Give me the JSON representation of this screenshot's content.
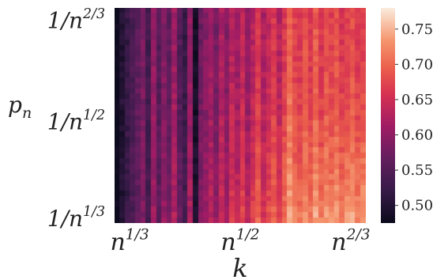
{
  "chart_data": {
    "type": "heatmap",
    "title": "",
    "xlabel": "k",
    "ylabel": "p_n",
    "x_tick_labels": [
      {
        "base": "n",
        "exp": "1/3"
      },
      {
        "base": "n",
        "exp": "1/2"
      },
      {
        "base": "n",
        "exp": "2/3"
      }
    ],
    "y_tick_labels": [
      {
        "prefix": "1/n",
        "exp": "2/3"
      },
      {
        "prefix": "1/n",
        "exp": "1/2"
      },
      {
        "prefix": "1/n",
        "exp": "1/3"
      }
    ],
    "colorbar": {
      "min": 0.475,
      "max": 0.78,
      "tick_values": [
        0.5,
        0.55,
        0.6,
        0.65,
        0.7,
        0.75
      ],
      "tick_labels": [
        "0.50",
        "0.55",
        "0.60",
        "0.65",
        "0.70",
        "0.75"
      ],
      "colormap": "rocket"
    },
    "grid": {
      "cols": 48,
      "rows": 40,
      "column_base_values": [
        0.47,
        0.5,
        0.52,
        0.54,
        0.56,
        0.58,
        0.53,
        0.6,
        0.55,
        0.59,
        0.56,
        0.61,
        0.55,
        0.52,
        0.6,
        0.48,
        0.57,
        0.59,
        0.61,
        0.58,
        0.62,
        0.59,
        0.63,
        0.61,
        0.64,
        0.6,
        0.63,
        0.66,
        0.62,
        0.64,
        0.66,
        0.63,
        0.66,
        0.7,
        0.67,
        0.66,
        0.68,
        0.66,
        0.69,
        0.66,
        0.68,
        0.67,
        0.68,
        0.66,
        0.67,
        0.68,
        0.66,
        0.67
      ],
      "bottom_rise": 0.07
    }
  }
}
